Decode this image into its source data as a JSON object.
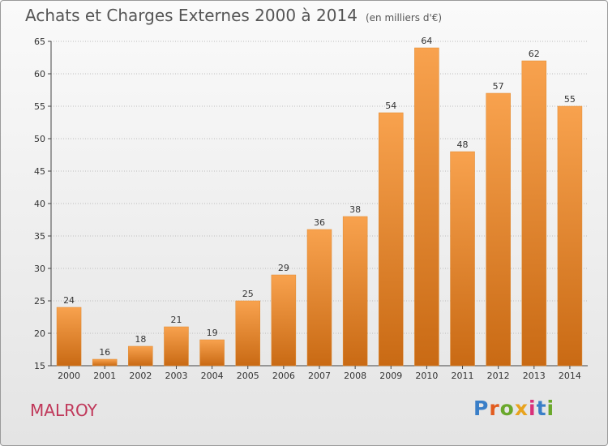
{
  "title": "Achats et Charges Externes 2000 à 2014",
  "unit": "(en milliers d'€)",
  "commune": "MALROY",
  "logo": {
    "text": "Proxiti",
    "colors": [
      "#3a7fc8",
      "#e25c1f",
      "#6aa82c",
      "#e8a31e",
      "#d9317a",
      "#3a7fc8",
      "#6aa82c"
    ]
  },
  "chart_data": {
    "type": "bar",
    "categories": [
      "2000",
      "2001",
      "2002",
      "2003",
      "2004",
      "2005",
      "2006",
      "2007",
      "2008",
      "2009",
      "2010",
      "2011",
      "2012",
      "2013",
      "2014"
    ],
    "values": [
      24,
      16,
      18,
      21,
      19,
      25,
      29,
      36,
      38,
      54,
      64,
      48,
      57,
      62,
      55
    ],
    "title": "Achats et Charges Externes 2000 à 2014",
    "ylim": [
      15,
      65
    ],
    "yticks": [
      15,
      20,
      25,
      30,
      35,
      40,
      45,
      50,
      55,
      60,
      65
    ],
    "grid": "horizontal dotted",
    "bar_color_light": "#f8a24e",
    "bar_color_dark": "#c96a14"
  }
}
